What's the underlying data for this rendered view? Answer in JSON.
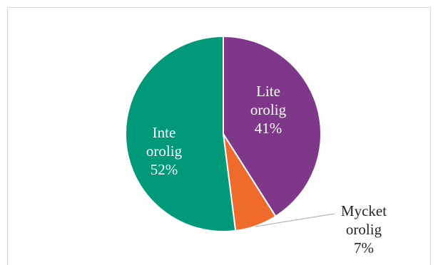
{
  "chart_data": {
    "type": "pie",
    "title": "",
    "slices": [
      {
        "name": "Lite\norolig",
        "value": 41,
        "label": "41%",
        "color": "#7f378a"
      },
      {
        "name": "Mycket\norolig",
        "value": 7,
        "label": "7%",
        "color": "#ef6b2c"
      },
      {
        "name": "Inte\norolig",
        "value": 52,
        "label": "52%",
        "color": "#00997a"
      }
    ],
    "label_colors": {
      "inside": "#ffffff",
      "outside": "#262626",
      "leader_line": "#a6a6a6"
    },
    "start_angle_deg": 0,
    "direction": "clockwise"
  }
}
